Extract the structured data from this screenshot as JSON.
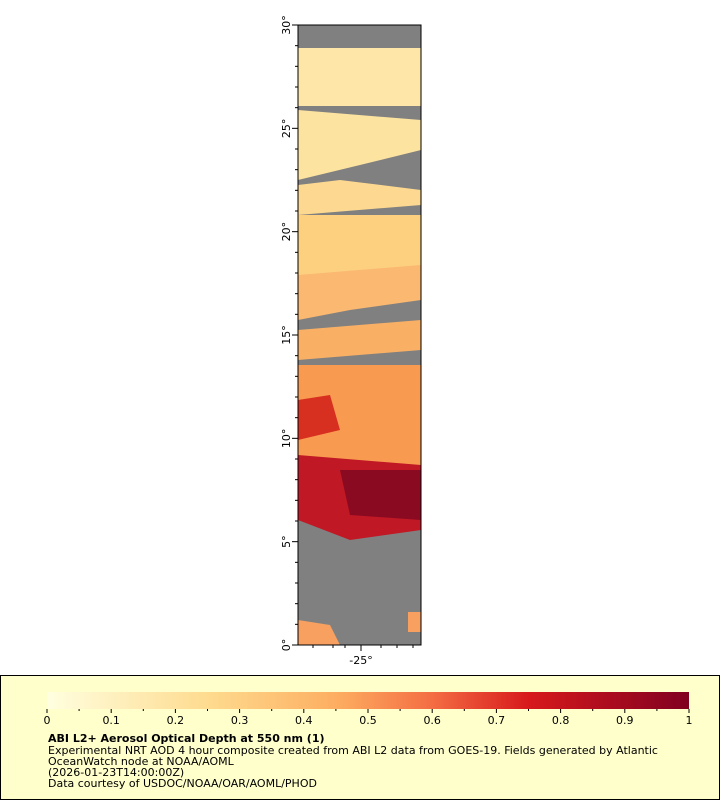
{
  "map": {
    "lat_ticks": [
      "0°",
      "5°",
      "10°",
      "15°",
      "20°",
      "25°",
      "30°"
    ],
    "lon_ticks": [
      "-25°"
    ]
  },
  "legend": {
    "ticks": [
      0,
      0.1,
      0.2,
      0.3,
      0.4,
      0.5,
      0.6,
      0.7,
      0.8,
      0.9,
      1
    ],
    "title": "ABI L2+ Aerosol Optical Depth at 550 nm (1)",
    "lines": [
      "Experimental NRT AOD 4 hour composite created from ABI L2 data from GOES-19. Fields generated by Atlantic",
      "OceanWatch node at NOAA/AOML",
      "(2026-01-23T14:00:00Z)",
      "Data courtesy of USDOC/NOAA/OAR/AOML/PHOD"
    ]
  }
}
